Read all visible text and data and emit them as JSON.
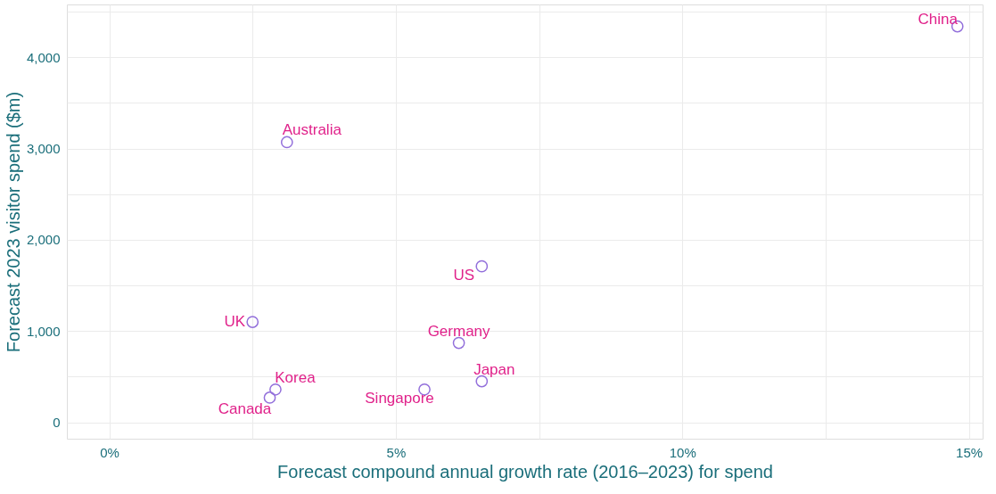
{
  "chart_data": {
    "type": "scatter",
    "xlabel": "Forecast compound annual growth rate (2016–2023) for spend",
    "ylabel": "Forecast 2023 visitor spend ($m)",
    "x": [
      14.8,
      3.1,
      6.5,
      2.5,
      6.1,
      6.5,
      5.5,
      2.9,
      2.8
    ],
    "series": [
      {
        "color": "#9370db",
        "values": [
          4340,
          3070,
          1710,
          1100,
          870,
          450,
          360,
          360,
          270
        ]
      }
    ],
    "annotations": [
      {
        "text": "China",
        "x": 14.8,
        "y": 4340
      },
      {
        "text": "Australia",
        "x": 3.1,
        "y": 3070
      },
      {
        "text": "US",
        "x": 6.5,
        "y": 1710
      },
      {
        "text": "UK",
        "x": 2.5,
        "y": 1100
      },
      {
        "text": "Germany",
        "x": 6.1,
        "y": 870
      },
      {
        "text": "Japan",
        "x": 6.5,
        "y": 450
      },
      {
        "text": "Singapore",
        "x": 5.5,
        "y": 360
      },
      {
        "text": "Korea",
        "x": 2.9,
        "y": 360
      },
      {
        "text": "Canada",
        "x": 2.8,
        "y": 270
      }
    ],
    "xlim": [
      -0.74,
      15.24
    ],
    "ylim": [
      -180,
      4580
    ],
    "xticks": [
      {
        "value": 0,
        "label": "0%"
      },
      {
        "value": 2.5,
        "label": null
      },
      {
        "value": 5,
        "label": "5%"
      },
      {
        "value": 7.5,
        "label": null
      },
      {
        "value": 10,
        "label": "10%"
      },
      {
        "value": 12.5,
        "label": null
      },
      {
        "value": 15,
        "label": "15%"
      }
    ],
    "yticks": [
      {
        "value": 0,
        "label": "0"
      },
      {
        "value": 500,
        "label": null
      },
      {
        "value": 1000,
        "label": "1,000"
      },
      {
        "value": 1500,
        "label": null
      },
      {
        "value": 2000,
        "label": "2,000"
      },
      {
        "value": 2500,
        "label": null
      },
      {
        "value": 3000,
        "label": "3,000"
      },
      {
        "value": 3500,
        "label": null
      },
      {
        "value": 4000,
        "label": "4,000"
      },
      {
        "value": 4500,
        "label": null
      }
    ],
    "grid": true,
    "marker": "circle"
  }
}
